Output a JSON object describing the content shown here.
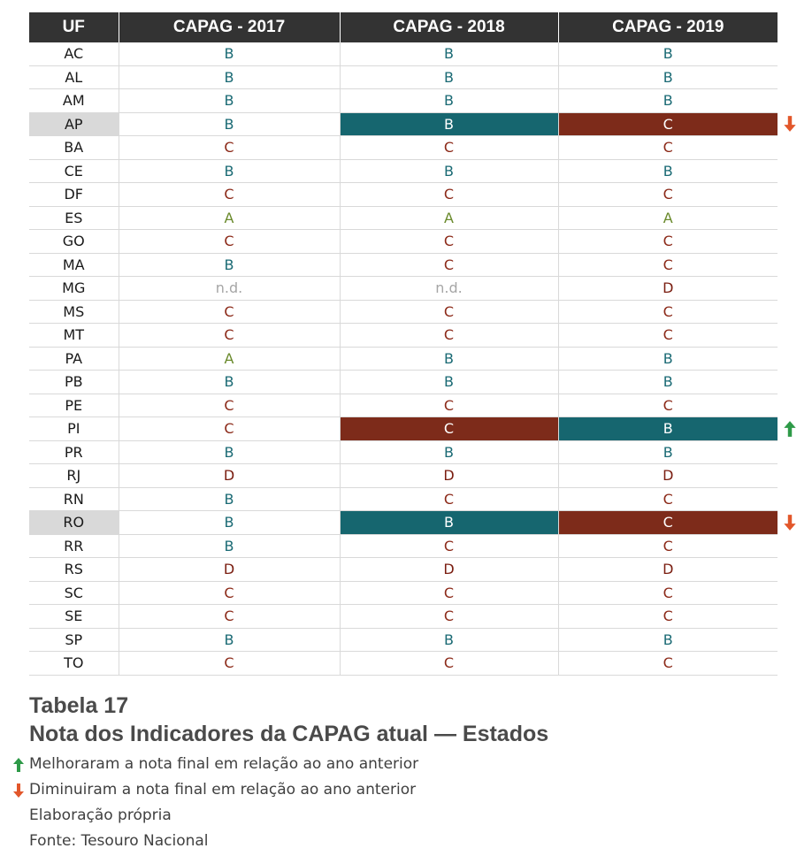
{
  "table": {
    "headers": [
      "UF",
      "CAPAG - 2017",
      "CAPAG - 2018",
      "CAPAG - 2019"
    ],
    "rows": [
      {
        "uf": "AC",
        "y2017": "B",
        "y2018": "B",
        "y2019": "B"
      },
      {
        "uf": "AL",
        "y2017": "B",
        "y2018": "B",
        "y2019": "B"
      },
      {
        "uf": "AM",
        "y2017": "B",
        "y2018": "B",
        "y2019": "B"
      },
      {
        "uf": "AP",
        "y2017": "B",
        "y2018": "B",
        "y2019": "C",
        "change": "down"
      },
      {
        "uf": "BA",
        "y2017": "C",
        "y2018": "C",
        "y2019": "C"
      },
      {
        "uf": "CE",
        "y2017": "B",
        "y2018": "B",
        "y2019": "B"
      },
      {
        "uf": "DF",
        "y2017": "C",
        "y2018": "C",
        "y2019": "C"
      },
      {
        "uf": "ES",
        "y2017": "A",
        "y2018": "A",
        "y2019": "A"
      },
      {
        "uf": "GO",
        "y2017": "C",
        "y2018": "C",
        "y2019": "C"
      },
      {
        "uf": "MA",
        "y2017": "B",
        "y2018": "C",
        "y2019": "C"
      },
      {
        "uf": "MG",
        "y2017": "n.d.",
        "y2018": "n.d.",
        "y2019": "D"
      },
      {
        "uf": "MS",
        "y2017": "C",
        "y2018": "C",
        "y2019": "C"
      },
      {
        "uf": "MT",
        "y2017": "C",
        "y2018": "C",
        "y2019": "C"
      },
      {
        "uf": "PA",
        "y2017": "A",
        "y2018": "B",
        "y2019": "B"
      },
      {
        "uf": "PB",
        "y2017": "B",
        "y2018": "B",
        "y2019": "B"
      },
      {
        "uf": "PE",
        "y2017": "C",
        "y2018": "C",
        "y2019": "C"
      },
      {
        "uf": "PI",
        "y2017": "C",
        "y2018": "C",
        "y2019": "B",
        "change": "up"
      },
      {
        "uf": "PR",
        "y2017": "B",
        "y2018": "B",
        "y2019": "B"
      },
      {
        "uf": "RJ",
        "y2017": "D",
        "y2018": "D",
        "y2019": "D"
      },
      {
        "uf": "RN",
        "y2017": "B",
        "y2018": "C",
        "y2019": "C"
      },
      {
        "uf": "RO",
        "y2017": "B",
        "y2018": "B",
        "y2019": "C",
        "change": "down"
      },
      {
        "uf": "RR",
        "y2017": "B",
        "y2018": "C",
        "y2019": "C"
      },
      {
        "uf": "RS",
        "y2017": "D",
        "y2018": "D",
        "y2019": "D"
      },
      {
        "uf": "SC",
        "y2017": "C",
        "y2018": "C",
        "y2019": "C"
      },
      {
        "uf": "SE",
        "y2017": "C",
        "y2018": "C",
        "y2019": "C"
      },
      {
        "uf": "SP",
        "y2017": "B",
        "y2018": "B",
        "y2019": "B"
      },
      {
        "uf": "TO",
        "y2017": "C",
        "y2018": "C",
        "y2019": "C"
      }
    ]
  },
  "caption": {
    "number": "Tabela 17",
    "title": "Nota dos Indicadores da CAPAG atual — Estados"
  },
  "notes": {
    "improved": "Melhoraram a nota final em relação ao ano anterior",
    "worsened": "Diminuiram a nota final em relação ao ano anterior",
    "elaboration": "Elaboração própria",
    "source": "Fonte: Tesouro Nacional"
  },
  "colors": {
    "header_bg": "#333333",
    "grade_A": "#6a8a2c",
    "grade_B": "#1a6a74",
    "grade_C": "#8c2a19",
    "grade_D": "#7a1d10",
    "fill_teal": "#16666f",
    "fill_red": "#7d2b1a",
    "arrow_up": "#2e9a48",
    "arrow_down": "#e2572b"
  }
}
